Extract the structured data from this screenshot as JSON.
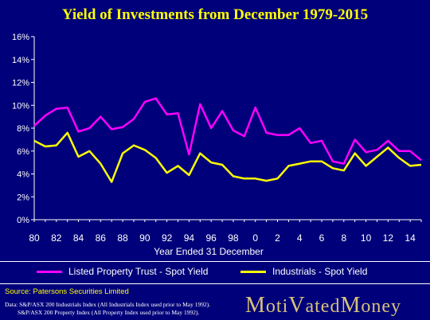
{
  "title": "Yield of Investments from December 1979-2015",
  "source": "Source: Patersons Securities Limited",
  "notes": [
    "Data:  S&P/ASX 200 Industrials  Index  (All  Industrials  Index  used prior to May 1992).",
    "S&P/ASX  200 Property  Index  (All  Property  Index  used prior to May 1992)."
  ],
  "logo": {
    "text": "MotivatedMoney",
    "m1": "M",
    "part1": "oti",
    "v": "V",
    "part2": "ated",
    "m2": "M",
    "part3": "oney"
  },
  "colors": {
    "background": "#00007a",
    "property": "#ff00ff",
    "industrials": "#ffff00",
    "text": "#ffffff",
    "title": "#ffff00"
  },
  "chart_data": {
    "type": "line",
    "title": "Yield of Investments from December 1979-2015",
    "xlabel": "Year Ended 31 December",
    "ylabel": "",
    "x": [
      1980,
      1981,
      1982,
      1983,
      1984,
      1985,
      1986,
      1987,
      1988,
      1989,
      1990,
      1991,
      1992,
      1993,
      1994,
      1995,
      1996,
      1997,
      1998,
      1999,
      2000,
      2001,
      2002,
      2003,
      2004,
      2005,
      2006,
      2007,
      2008,
      2009,
      2010,
      2011,
      2012,
      2013,
      2014,
      2015
    ],
    "xticks": [
      "80",
      "82",
      "84",
      "86",
      "88",
      "90",
      "92",
      "94",
      "96",
      "98",
      "0",
      "2",
      "4",
      "6",
      "8",
      "10",
      "12",
      "14"
    ],
    "yticks": [
      "0%",
      "2%",
      "4%",
      "6%",
      "8%",
      "10%",
      "12%",
      "14%",
      "16%"
    ],
    "ylim": [
      0,
      16
    ],
    "grid": false,
    "legend_position": "bottom",
    "series": [
      {
        "name": "Listed Property Trust - Spot Yield",
        "color": "#ff00ff",
        "values": [
          8.2,
          9.1,
          9.7,
          9.8,
          7.7,
          8.0,
          9.0,
          7.9,
          8.1,
          8.8,
          10.3,
          10.6,
          9.2,
          9.3,
          5.7,
          10.1,
          8.0,
          9.5,
          7.8,
          7.3,
          9.8,
          7.6,
          7.4,
          7.4,
          8.0,
          6.7,
          6.9,
          5.1,
          4.9,
          7.0,
          5.9,
          6.1,
          6.9,
          6.0,
          6.0,
          5.2
        ]
      },
      {
        "name": "Industrials - Spot Yield",
        "color": "#ffff00",
        "values": [
          6.9,
          6.4,
          6.5,
          7.6,
          5.5,
          6.0,
          4.9,
          3.3,
          5.8,
          6.5,
          6.1,
          5.4,
          4.1,
          4.7,
          3.9,
          5.8,
          5.0,
          4.8,
          3.8,
          3.6,
          3.6,
          3.4,
          3.6,
          4.7,
          4.9,
          5.1,
          5.1,
          4.5,
          4.3,
          5.8,
          4.7,
          5.5,
          6.3,
          5.4,
          4.7,
          4.8
        ]
      }
    ]
  }
}
